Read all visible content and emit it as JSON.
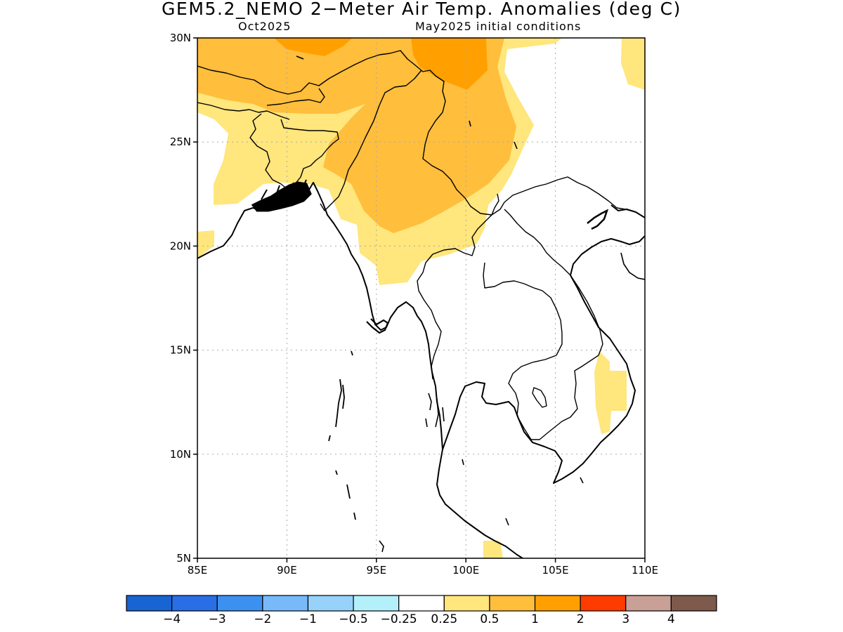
{
  "title": "GEM5.2_NEMO 2−Meter Air Temp. Anomalies (deg C)",
  "subtitle_left": "Oct2025",
  "subtitle_right": "May2025 initial conditions",
  "map": {
    "lon_range": [
      85,
      110
    ],
    "lat_range": [
      5,
      30
    ],
    "lon_ticks": [
      {
        "value": 85,
        "label": "85E"
      },
      {
        "value": 90,
        "label": "90E"
      },
      {
        "value": 95,
        "label": "95E"
      },
      {
        "value": 100,
        "label": "100E"
      },
      {
        "value": 105,
        "label": "105E"
      },
      {
        "value": 110,
        "label": "110E"
      }
    ],
    "lat_ticks": [
      {
        "value": 30,
        "label": "30N"
      },
      {
        "value": 25,
        "label": "25N"
      },
      {
        "value": 20,
        "label": "20N"
      },
      {
        "value": 15,
        "label": "15N"
      },
      {
        "value": 10,
        "label": "10N"
      },
      {
        "value": 5,
        "label": "5N"
      }
    ],
    "grid": true
  },
  "colorbar": {
    "colors": [
      "#1864d2",
      "#2a6ee6",
      "#3c91f0",
      "#78b9fa",
      "#96d2fa",
      "#b4f0fa",
      "#ffffff",
      "#ffe67d",
      "#ffbe3c",
      "#ffa000",
      "#ff3c00",
      "#c8a096",
      "#7d5a4b"
    ],
    "labels": [
      "−4",
      "−3",
      "−2",
      "−1",
      "−0.5",
      "−0.25",
      "0.25",
      "0.5",
      "1",
      "2",
      "3",
      "4"
    ]
  }
}
